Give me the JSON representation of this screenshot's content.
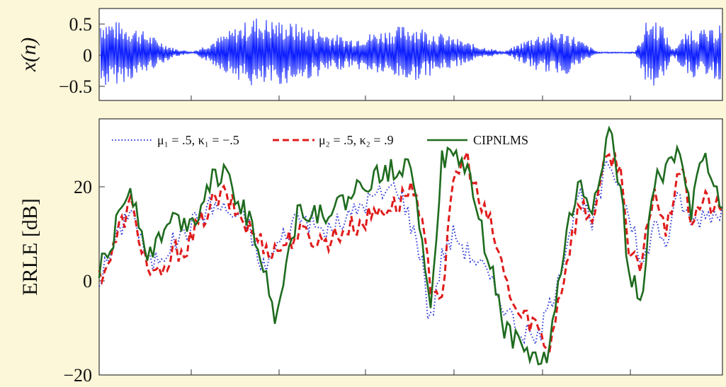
{
  "colors": {
    "background": "#fdf7d9",
    "signal": "#0a1cff",
    "mu1": "#2a35d8",
    "mu2": "#e01b1b",
    "cipnlms": "#1e6b1e"
  },
  "chart_data": [
    {
      "type": "line",
      "ylabel": "x(n)",
      "ylim": [
        -0.65,
        0.6
      ],
      "yticks": [
        0.5,
        0,
        -0.5
      ],
      "ytick_labels": [
        "0.5",
        "0",
        "−0.5"
      ],
      "grid": false,
      "series": [
        {
          "style": "solid",
          "x": [
            0,
            6,
            12,
            15,
            25,
            33,
            40,
            50,
            60,
            65,
            70,
            75,
            80,
            86,
            88,
            90,
            92,
            95,
            98,
            100
          ],
          "envelope": [
            0.5,
            0.35,
            0.06,
            0.01,
            0.5,
            0.38,
            0.2,
            0.4,
            0.12,
            0.01,
            0.25,
            0.3,
            0.01,
            0.01,
            0.48,
            0.45,
            0.05,
            0.35,
            0.3,
            0.48
          ]
        }
      ]
    },
    {
      "type": "line",
      "ylabel": "ERLE [dB]",
      "ylim": [
        -20,
        34
      ],
      "yticks": [
        20,
        0,
        -20
      ],
      "ytick_labels": [
        "20",
        "0",
        "−20"
      ],
      "grid": false,
      "legend_position": "top-left",
      "series": [
        {
          "name": "μ₁ = .5, κ₁ = −.5",
          "style": "dotted",
          "x": [
            0,
            2,
            5,
            8,
            12,
            18,
            20,
            24,
            26,
            32,
            36,
            40,
            42,
            45,
            48,
            50,
            52,
            53,
            55,
            57,
            59,
            61,
            63,
            65,
            67,
            70,
            72,
            75,
            77,
            79,
            81,
            82,
            85,
            87,
            89,
            91,
            93,
            95,
            97,
            100
          ],
          "values": [
            0,
            6,
            16,
            3,
            8,
            16,
            15,
            12,
            2,
            14,
            10,
            13,
            16,
            18,
            20,
            12,
            4,
            -10,
            5,
            10,
            6,
            4,
            -1,
            -5,
            -10,
            -13,
            -7,
            8,
            18,
            11,
            22,
            25,
            15,
            2,
            12,
            8,
            18,
            12,
            14,
            15
          ]
        },
        {
          "name": "μ₂ = .5, κ₂ = .9",
          "style": "dashed",
          "x": [
            0,
            2,
            3,
            5,
            8,
            10,
            12,
            14,
            18,
            20,
            24,
            26,
            28,
            32,
            36,
            40,
            42,
            45,
            48,
            50,
            52,
            53,
            55,
            57,
            59,
            61,
            63,
            65,
            67,
            70,
            72,
            75,
            77,
            79,
            81,
            82,
            84,
            85,
            87,
            89,
            91,
            93,
            95,
            97,
            100
          ],
          "values": [
            1,
            5,
            10,
            16,
            2,
            0,
            6,
            7,
            16,
            18,
            11,
            8,
            6,
            10,
            8,
            11,
            12,
            15,
            16,
            20,
            10,
            0,
            -3,
            22,
            26,
            16,
            11,
            1,
            -7,
            -9,
            -15,
            4,
            16,
            13,
            23,
            27,
            22,
            5,
            2,
            20,
            9,
            25,
            13,
            17,
            14
          ]
        },
        {
          "name": "CIPNLMS",
          "style": "solid",
          "x": [
            0,
            2,
            3,
            5,
            8,
            10,
            12,
            15,
            18,
            20,
            24,
            26,
            28,
            32,
            36,
            40,
            42,
            45,
            48,
            50,
            52,
            53,
            55,
            57,
            59,
            61,
            63,
            65,
            67,
            70,
            72,
            75,
            77,
            79,
            81,
            82,
            84,
            85,
            87,
            89,
            91,
            93,
            95,
            97,
            100
          ],
          "values": [
            2,
            7,
            13,
            20,
            5,
            10,
            13,
            12,
            22,
            22,
            13,
            5,
            -8,
            15,
            14,
            17,
            20,
            22,
            24,
            25,
            8,
            -7,
            25,
            26,
            24,
            12,
            2,
            -10,
            -13,
            -17,
            -16,
            10,
            20,
            15,
            27,
            32,
            15,
            0,
            -3,
            20,
            24,
            26,
            15,
            28,
            15
          ]
        }
      ]
    }
  ]
}
